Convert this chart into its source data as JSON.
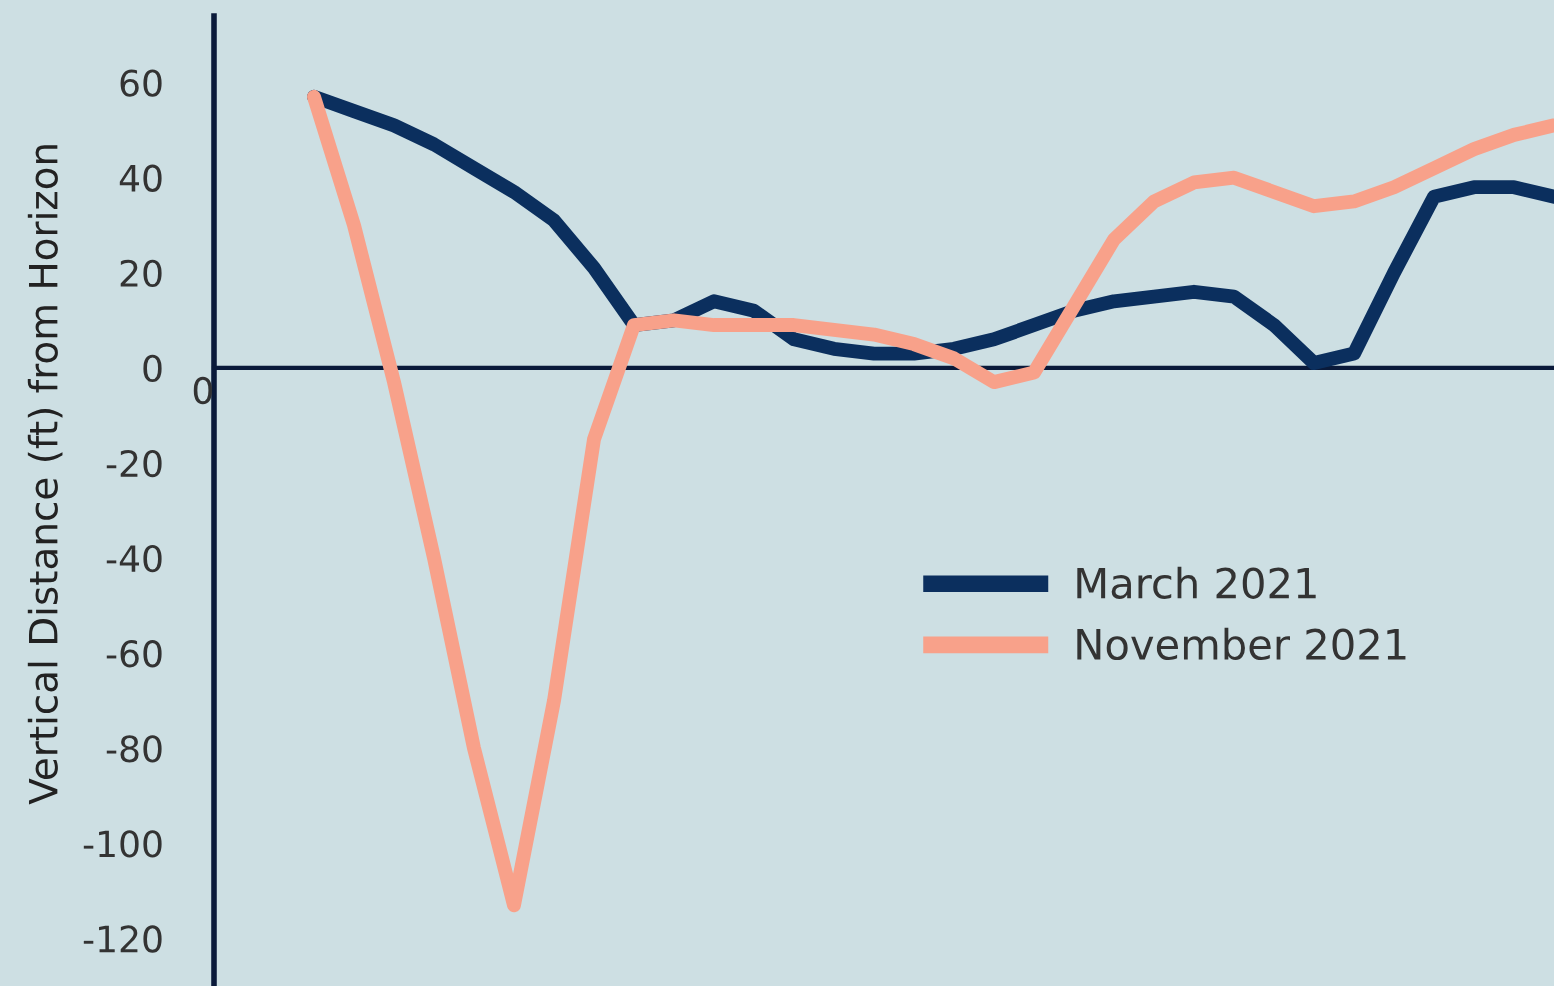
{
  "chart_data": {
    "type": "line",
    "ylabel": "Vertical Distance (ft) from Horizon",
    "categories": [
      null,
      null,
      null,
      null,
      null,
      null,
      null,
      null,
      null,
      null,
      null,
      null,
      null,
      null,
      null,
      null,
      null,
      null,
      null,
      null,
      null,
      null,
      null,
      null,
      null,
      null,
      null,
      null,
      null,
      null,
      null,
      null
    ],
    "series": [
      {
        "name": "March 2021",
        "color": "#0b2f5e",
        "values": [
          57,
          54,
          51,
          47,
          42,
          37,
          31,
          21,
          9,
          10,
          14,
          12,
          6,
          4,
          3,
          3,
          4,
          6,
          9,
          12,
          14,
          15,
          16,
          15,
          9,
          1,
          3,
          20,
          36,
          38,
          38,
          36
        ]
      },
      {
        "name": "November 2021",
        "color": "#f8a18a",
        "values": [
          57,
          30,
          -3,
          -40,
          -80,
          -113,
          -70,
          -15,
          9,
          10,
          9,
          9,
          9,
          8,
          7,
          5,
          2,
          -3,
          -1,
          13,
          27,
          35,
          39,
          40,
          37,
          34,
          35,
          38,
          42,
          46,
          49,
          51
        ]
      }
    ],
    "ylim": [
      -130,
      74
    ],
    "yticks": [
      -120,
      -100,
      -80,
      -60,
      -40,
      -20,
      0,
      20,
      40,
      60
    ],
    "annotations": [
      "0"
    ],
    "legend": "right",
    "grid": false,
    "marker": "none",
    "line_style": "solid"
  }
}
